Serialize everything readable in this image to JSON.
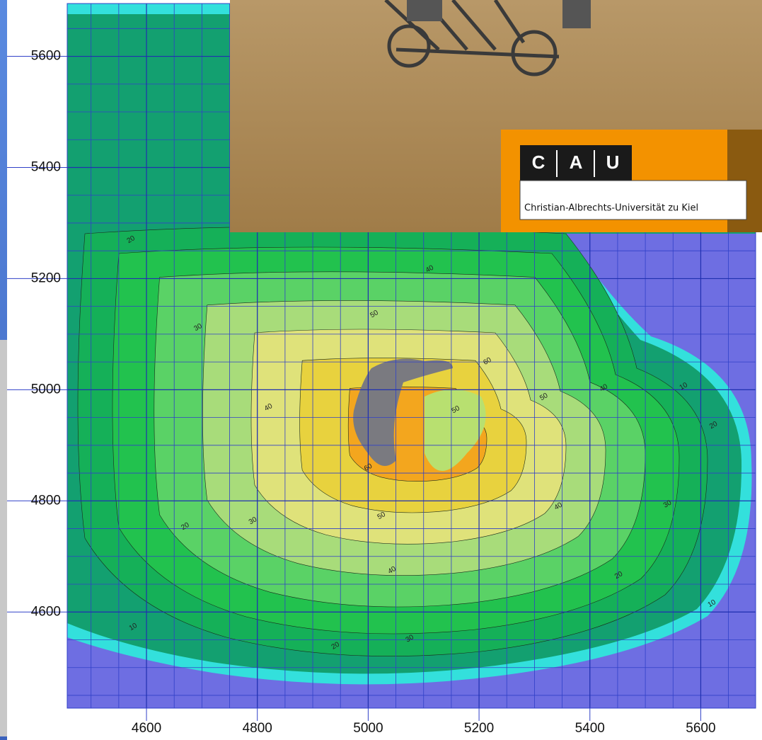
{
  "map": {
    "xlim": [
      4457,
      5699
    ],
    "ylim": [
      4427,
      5695
    ],
    "xticks": [
      4600,
      4800,
      5000,
      5200,
      5400,
      5600
    ],
    "yticks": [
      4600,
      4800,
      5000,
      5200,
      5400,
      5600
    ],
    "contour_labels": [
      {
        "value": 20,
        "x": 4572,
        "y": 5270
      },
      {
        "value": 30,
        "x": 4693,
        "y": 5112
      },
      {
        "value": 40,
        "x": 5111,
        "y": 5217
      },
      {
        "value": 50,
        "x": 5011,
        "y": 5136
      },
      {
        "value": 60,
        "x": 5215,
        "y": 5051
      },
      {
        "value": 50,
        "x": 5317,
        "y": 4987
      },
      {
        "value": 40,
        "x": 5425,
        "y": 5003
      },
      {
        "value": 10,
        "x": 5569,
        "y": 5006
      },
      {
        "value": 20,
        "x": 5623,
        "y": 4936
      },
      {
        "value": 40,
        "x": 4820,
        "y": 4968
      },
      {
        "value": 60,
        "x": 5000,
        "y": 4860
      },
      {
        "value": 50,
        "x": 5024,
        "y": 4773
      },
      {
        "value": 30,
        "x": 4792,
        "y": 4764
      },
      {
        "value": 20,
        "x": 4670,
        "y": 4754
      },
      {
        "value": 40,
        "x": 5043,
        "y": 4675
      },
      {
        "value": 30,
        "x": 5075,
        "y": 4552
      },
      {
        "value": 20,
        "x": 4941,
        "y": 4539
      },
      {
        "value": 10,
        "x": 4576,
        "y": 4573
      },
      {
        "value": 10,
        "x": 5620,
        "y": 4615
      },
      {
        "value": 20,
        "x": 5452,
        "y": 4666
      },
      {
        "value": 30,
        "x": 5540,
        "y": 4794
      },
      {
        "value": 40,
        "x": 5343,
        "y": 4790
      },
      {
        "value": 50,
        "x": 5158,
        "y": 4964
      }
    ]
  },
  "logo": {
    "letters": [
      "C",
      "A",
      "U"
    ],
    "name": "Christian-Albrechts-Universität zu Kiel"
  }
}
